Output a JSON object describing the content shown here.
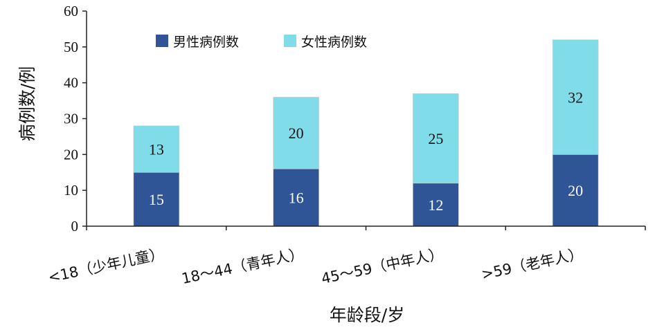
{
  "chart_data": {
    "type": "bar",
    "stacked": true,
    "categories": [
      "<18（少年儿童）",
      "18～44（青年人）",
      "45～59（中年人）",
      ">59（老年人）"
    ],
    "series": [
      {
        "name": "男性病例数",
        "values": [
          15,
          16,
          12,
          20
        ],
        "color": "#2f5597",
        "label_color": "#ffffff"
      },
      {
        "name": "女性病例数",
        "values": [
          13,
          20,
          25,
          32
        ],
        "color": "#7fdce8",
        "label_color": "#111111"
      }
    ],
    "xlabel": "年龄段/岁",
    "ylabel": "病例数/例",
    "ylim": [
      0,
      60
    ],
    "yticks": [
      "0",
      "10",
      "20",
      "30",
      "40",
      "50",
      "60"
    ],
    "grid": false,
    "legend_position": "top-center"
  }
}
